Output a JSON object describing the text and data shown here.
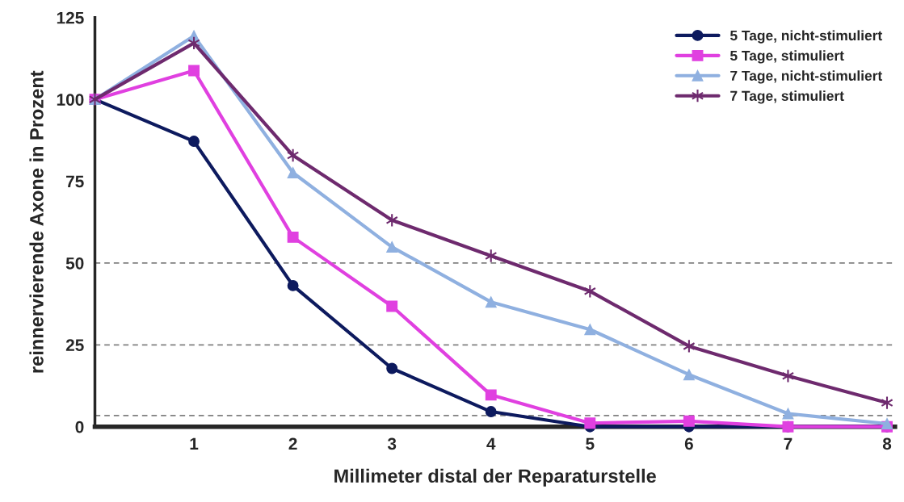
{
  "chart_data": {
    "type": "line",
    "xlabel": "Millimeter distal der Reparaturstelle",
    "ylabel": "reinnervierende Axone in Prozent",
    "x": [
      0,
      1,
      2,
      3,
      4,
      5,
      6,
      7,
      8
    ],
    "xlim": [
      0,
      8.08
    ],
    "xticks": [
      1,
      2,
      3,
      4,
      5,
      6,
      7,
      8
    ],
    "ylim": [
      0,
      125
    ],
    "yticks": [
      0,
      25,
      50,
      75,
      100,
      125
    ],
    "grid": false,
    "legend": "top right",
    "ref_lines": [
      {
        "axis": "y",
        "value": 50,
        "color": "#808080",
        "line_style": "dashed"
      },
      {
        "axis": "y",
        "value": 25,
        "color": "#808080",
        "line_style": "dashed"
      },
      {
        "axis": "y",
        "value": 3.4,
        "color": "#808080",
        "line_style": "dashed"
      }
    ],
    "series": [
      {
        "name": "5 Tage, nicht-stimuliert",
        "color": "#0d1a5e",
        "marker": "circle",
        "values": [
          100,
          87.2,
          43.1,
          17.8,
          4.6,
          0,
          0,
          0,
          0
        ]
      },
      {
        "name": "5 Tage, stimuliert",
        "color": "#e040e0",
        "marker": "square",
        "values": [
          100,
          108.8,
          57.9,
          36.8,
          9.7,
          1.1,
          1.7,
          0,
          0
        ]
      },
      {
        "name": "7 Tage, nicht-stimuliert",
        "color": "#8fb0e0",
        "marker": "triangle",
        "values": [
          100,
          119.4,
          77.6,
          54.9,
          38.1,
          29.7,
          15.9,
          4.0,
          0.9
        ]
      },
      {
        "name": "7 Tage, stimuliert",
        "color": "#6e2a6e",
        "marker": "cross",
        "values": [
          100,
          117.2,
          82.9,
          63.1,
          52.2,
          41.4,
          24.6,
          15.5,
          7.3
        ]
      }
    ]
  }
}
